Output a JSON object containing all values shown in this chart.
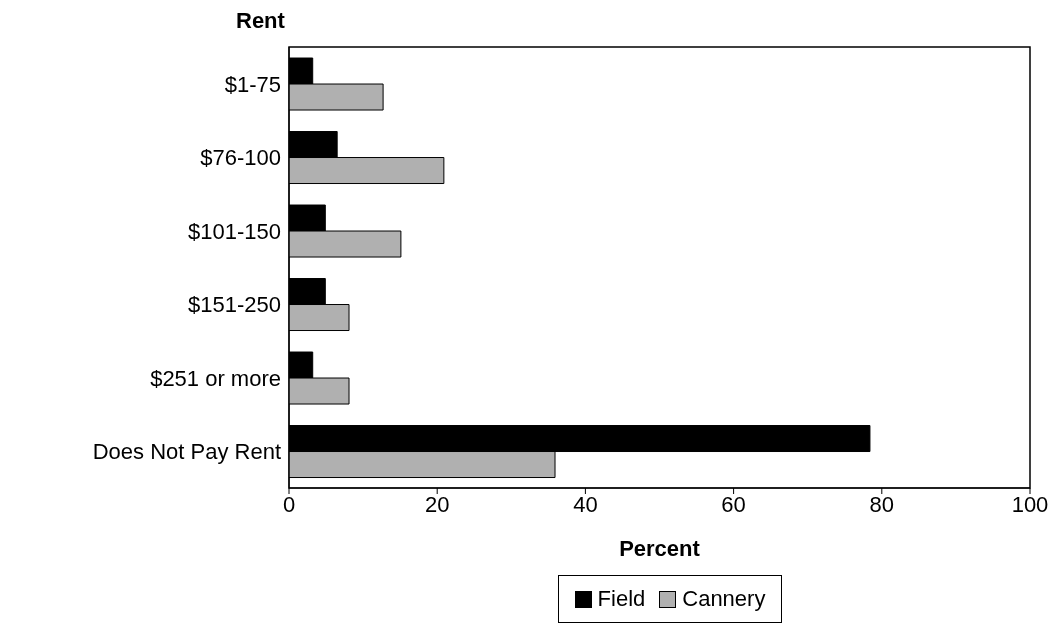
{
  "chart_data": {
    "type": "bar",
    "orientation": "horizontal",
    "ylabel": "Rent",
    "xlabel": "Percent",
    "categories": [
      "$1-75",
      "$76-100",
      "$101-150",
      "$151-250",
      "$251 or more",
      "Does Not Pay Rent"
    ],
    "series": [
      {
        "name": "Field",
        "color": "#000000",
        "values": [
          3.2,
          6.5,
          4.9,
          4.9,
          3.2,
          78.4
        ]
      },
      {
        "name": "Cannery",
        "color": "#b0b0b0",
        "values": [
          12.7,
          20.9,
          15.1,
          8.1,
          8.1,
          35.9
        ]
      }
    ],
    "xlim": [
      0,
      100
    ],
    "xticks": [
      0,
      20,
      40,
      60,
      80,
      100
    ],
    "legend": "bottom",
    "grid": false
  }
}
